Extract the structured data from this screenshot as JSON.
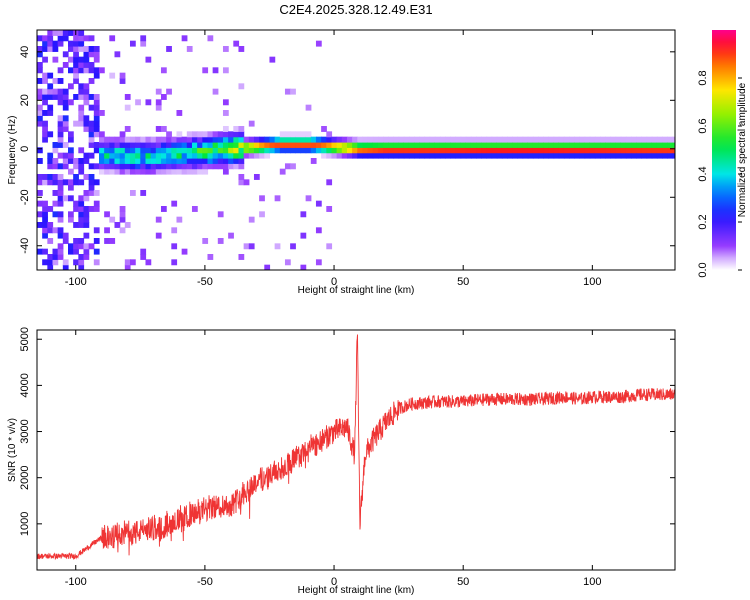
{
  "figure": {
    "title": "C2E4.2025.328.12.49.E31"
  },
  "chart_data": [
    {
      "type": "heatmap",
      "title": "",
      "xlabel": "Height of straight line (km)",
      "ylabel": "Frequency (Hz)",
      "xlim": [
        -115,
        132
      ],
      "ylim": [
        -50,
        49
      ],
      "xticks": [
        -100,
        -50,
        0,
        50,
        100
      ],
      "xtick_labels": [
        "-100",
        "-50",
        "0",
        "50",
        "100"
      ],
      "yticks": [
        -40,
        -20,
        0,
        20,
        40
      ],
      "ytick_labels": [
        "-40",
        "-20",
        "0",
        "20",
        "40"
      ],
      "colorbar": {
        "label": "Normalized spectral amplitude",
        "range": [
          0,
          1
        ],
        "ticks": [
          0.0,
          0.2,
          0.4,
          0.6,
          0.8
        ],
        "tick_labels": [
          "0.0",
          "0.2",
          "0.4",
          "0.6",
          "0.8"
        ],
        "colormap": "rainbow (white-purple-blue-cyan-green-yellow-red-magenta)"
      },
      "ridge": {
        "x": [
          -90,
          -80,
          -70,
          -60,
          -50,
          -40,
          -30,
          -20,
          -10,
          0,
          10,
          20,
          40,
          60,
          80,
          100,
          120,
          132
        ],
        "frequency": [
          -2,
          -3,
          -3,
          -2,
          -1,
          0,
          1,
          2,
          2,
          1,
          0,
          0,
          0,
          0,
          0,
          0,
          0,
          0
        ],
        "amplitude": [
          0.45,
          0.5,
          0.5,
          0.5,
          0.6,
          0.7,
          0.85,
          0.9,
          0.9,
          0.85,
          0.9,
          0.95,
          0.95,
          0.97,
          0.97,
          0.96,
          0.95,
          0.95
        ]
      },
      "noise_region_x": [
        -115,
        -90
      ]
    },
    {
      "type": "line",
      "title": "",
      "xlabel": "Height of straight line (km)",
      "ylabel": "SNR (10 * v/v)",
      "xlim": [
        -115,
        132
      ],
      "ylim": [
        0,
        5200
      ],
      "xticks": [
        -100,
        -50,
        0,
        50,
        100
      ],
      "xtick_labels": [
        "-100",
        "-50",
        "0",
        "50",
        "100"
      ],
      "yticks": [
        1000,
        2000,
        3000,
        4000,
        5000
      ],
      "ytick_labels": [
        "1000",
        "2000",
        "3000",
        "4000",
        "5000"
      ],
      "color": "#ef3434",
      "series": [
        {
          "name": "SNR",
          "x": [
            -115,
            -100,
            -95,
            -90,
            -80,
            -70,
            -60,
            -50,
            -45,
            -40,
            -35,
            -30,
            -20,
            -10,
            -5,
            0,
            5,
            8,
            9,
            10,
            12,
            15,
            20,
            25,
            30,
            40,
            50,
            60,
            70,
            80,
            90,
            95,
            100,
            110,
            120,
            132
          ],
          "y": [
            300,
            300,
            500,
            700,
            800,
            900,
            1100,
            1300,
            1400,
            1400,
            1700,
            1900,
            2200,
            2600,
            2800,
            3000,
            3100,
            2500,
            5200,
            1000,
            2500,
            2800,
            3200,
            3500,
            3600,
            3650,
            3650,
            3700,
            3700,
            3700,
            3750,
            3700,
            3750,
            3750,
            3800,
            3800
          ]
        }
      ]
    }
  ]
}
